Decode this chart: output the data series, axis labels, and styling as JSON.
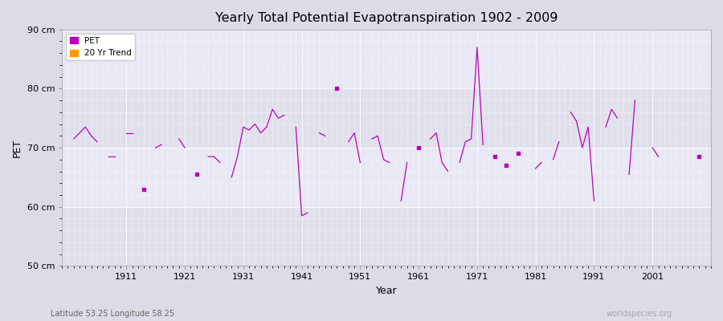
{
  "title": "Yearly Total Potential Evapotranspiration 1902 - 2009",
  "xlabel": "Year",
  "ylabel": "PET",
  "bottom_left_label": "Latitude 53.25 Longitude 58.25",
  "bottom_right_label": "worldspecies.org",
  "background_color": "#dcdce8",
  "plot_bg_upper": "#e8e8f0",
  "plot_bg_lower": "#d8d8e4",
  "line_color": "#bb00bb",
  "trend_color": "#ff9900",
  "ylim": [
    50,
    90
  ],
  "yticks": [
    50,
    60,
    70,
    80,
    90
  ],
  "ytick_labels": [
    "50 cm",
    "60 cm",
    "70 cm",
    "80 cm",
    "90 cm"
  ],
  "xticks": [
    1911,
    1921,
    1931,
    1941,
    1951,
    1961,
    1971,
    1981,
    1991,
    2001
  ],
  "xlim": [
    1900,
    2011
  ],
  "years": [
    1902,
    1903,
    1904,
    1905,
    1906,
    1908,
    1909,
    1911,
    1912,
    1914,
    1916,
    1917,
    1920,
    1921,
    1923,
    1925,
    1926,
    1927,
    1929,
    1930,
    1931,
    1932,
    1933,
    1934,
    1935,
    1936,
    1937,
    1938,
    1940,
    1941,
    1942,
    1944,
    1945,
    1947,
    1949,
    1950,
    1951,
    1953,
    1954,
    1955,
    1956,
    1958,
    1959,
    1961,
    1963,
    1964,
    1965,
    1966,
    1968,
    1969,
    1970,
    1971,
    1972,
    1974,
    1976,
    1978,
    1981,
    1982,
    1984,
    1985,
    1987,
    1988,
    1989,
    1990,
    1991,
    1993,
    1994,
    1995,
    1997,
    1998,
    2001,
    2002,
    2009
  ],
  "values": [
    71.5,
    72.5,
    73.5,
    72.0,
    71.0,
    68.5,
    68.5,
    72.5,
    72.5,
    63.0,
    70.0,
    70.5,
    71.5,
    70.0,
    65.5,
    68.5,
    68.5,
    67.5,
    65.0,
    68.5,
    73.5,
    73.0,
    74.0,
    72.5,
    73.5,
    76.5,
    75.0,
    75.5,
    73.5,
    58.5,
    59.0,
    72.5,
    72.0,
    80.0,
    71.0,
    72.5,
    67.5,
    71.5,
    72.0,
    68.0,
    67.5,
    61.0,
    67.5,
    70.0,
    71.5,
    72.5,
    67.5,
    66.0,
    67.5,
    71.0,
    71.5,
    87.0,
    70.5,
    68.5,
    67.0,
    69.0,
    66.5,
    67.5,
    68.0,
    71.0,
    76.0,
    74.5,
    70.0,
    73.5,
    61.0,
    73.5,
    76.5,
    75.0,
    65.5,
    78.0,
    70.0,
    68.5,
    68.5
  ]
}
